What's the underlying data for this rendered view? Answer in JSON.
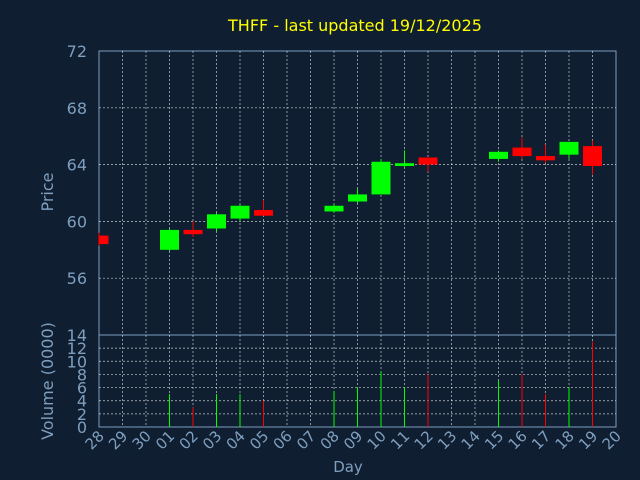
{
  "chart_data": {
    "type": "candlestick",
    "title": "THFF - last updated 19/12/2025",
    "colors": {
      "background": "#0f1e30",
      "title": "#ffff00",
      "text": "#7f9fbf",
      "grid": "#ffffff",
      "up": "#00ff00",
      "down": "#ff0000"
    },
    "price_panel": {
      "ylabel": "Price",
      "ylim": [
        52,
        72
      ],
      "yticks": [
        56,
        60,
        64,
        68,
        72
      ]
    },
    "volume_panel": {
      "ylabel": "Volume (0000)",
      "ylim": [
        0,
        14
      ],
      "yticks": [
        0,
        2,
        4,
        6,
        8,
        10,
        12,
        14
      ]
    },
    "xlabel": "Day",
    "x_tick_labels": [
      "28",
      "29",
      "30",
      "01",
      "02",
      "03",
      "04",
      "05",
      "06",
      "07",
      "08",
      "09",
      "10",
      "11",
      "12",
      "13",
      "14",
      "15",
      "16",
      "17",
      "18",
      "19",
      "20"
    ],
    "candles": [
      {
        "day": "28",
        "open": 59.0,
        "high": 59.2,
        "low": 58.3,
        "close": 58.4,
        "volume": 0
      },
      {
        "day": "01",
        "open": 58.0,
        "high": 59.5,
        "low": 57.9,
        "close": 59.4,
        "volume": 5.0
      },
      {
        "day": "02",
        "open": 59.4,
        "high": 60.0,
        "low": 58.9,
        "close": 59.1,
        "volume": 3.0
      },
      {
        "day": "03",
        "open": 59.5,
        "high": 60.6,
        "low": 59.3,
        "close": 60.5,
        "volume": 5.0
      },
      {
        "day": "04",
        "open": 60.2,
        "high": 61.2,
        "low": 60.0,
        "close": 61.1,
        "volume": 5.0
      },
      {
        "day": "05",
        "open": 60.8,
        "high": 61.5,
        "low": 60.4,
        "close": 60.4,
        "volume": 4.0
      },
      {
        "day": "08",
        "open": 60.7,
        "high": 61.2,
        "low": 60.6,
        "close": 61.1,
        "volume": 5.5
      },
      {
        "day": "09",
        "open": 61.4,
        "high": 62.3,
        "low": 61.3,
        "close": 61.9,
        "volume": 6.0
      },
      {
        "day": "10",
        "open": 61.9,
        "high": 64.4,
        "low": 61.9,
        "close": 64.2,
        "volume": 8.5
      },
      {
        "day": "11",
        "open": 63.9,
        "high": 65.0,
        "low": 63.8,
        "close": 64.1,
        "volume": 6.0
      },
      {
        "day": "12",
        "open": 64.5,
        "high": 64.5,
        "low": 63.5,
        "close": 64.0,
        "volume": 8.0
      },
      {
        "day": "15",
        "open": 64.4,
        "high": 65.0,
        "low": 64.2,
        "close": 64.9,
        "volume": 7.0
      },
      {
        "day": "16",
        "open": 65.2,
        "high": 65.9,
        "low": 64.4,
        "close": 64.6,
        "volume": 8.0
      },
      {
        "day": "17",
        "open": 64.6,
        "high": 65.4,
        "low": 64.1,
        "close": 64.3,
        "volume": 5.0
      },
      {
        "day": "18",
        "open": 64.7,
        "high": 65.6,
        "low": 64.4,
        "close": 65.6,
        "volume": 6.0
      },
      {
        "day": "19",
        "open": 65.3,
        "high": 65.7,
        "low": 63.3,
        "close": 63.9,
        "volume": 13.0
      }
    ]
  }
}
